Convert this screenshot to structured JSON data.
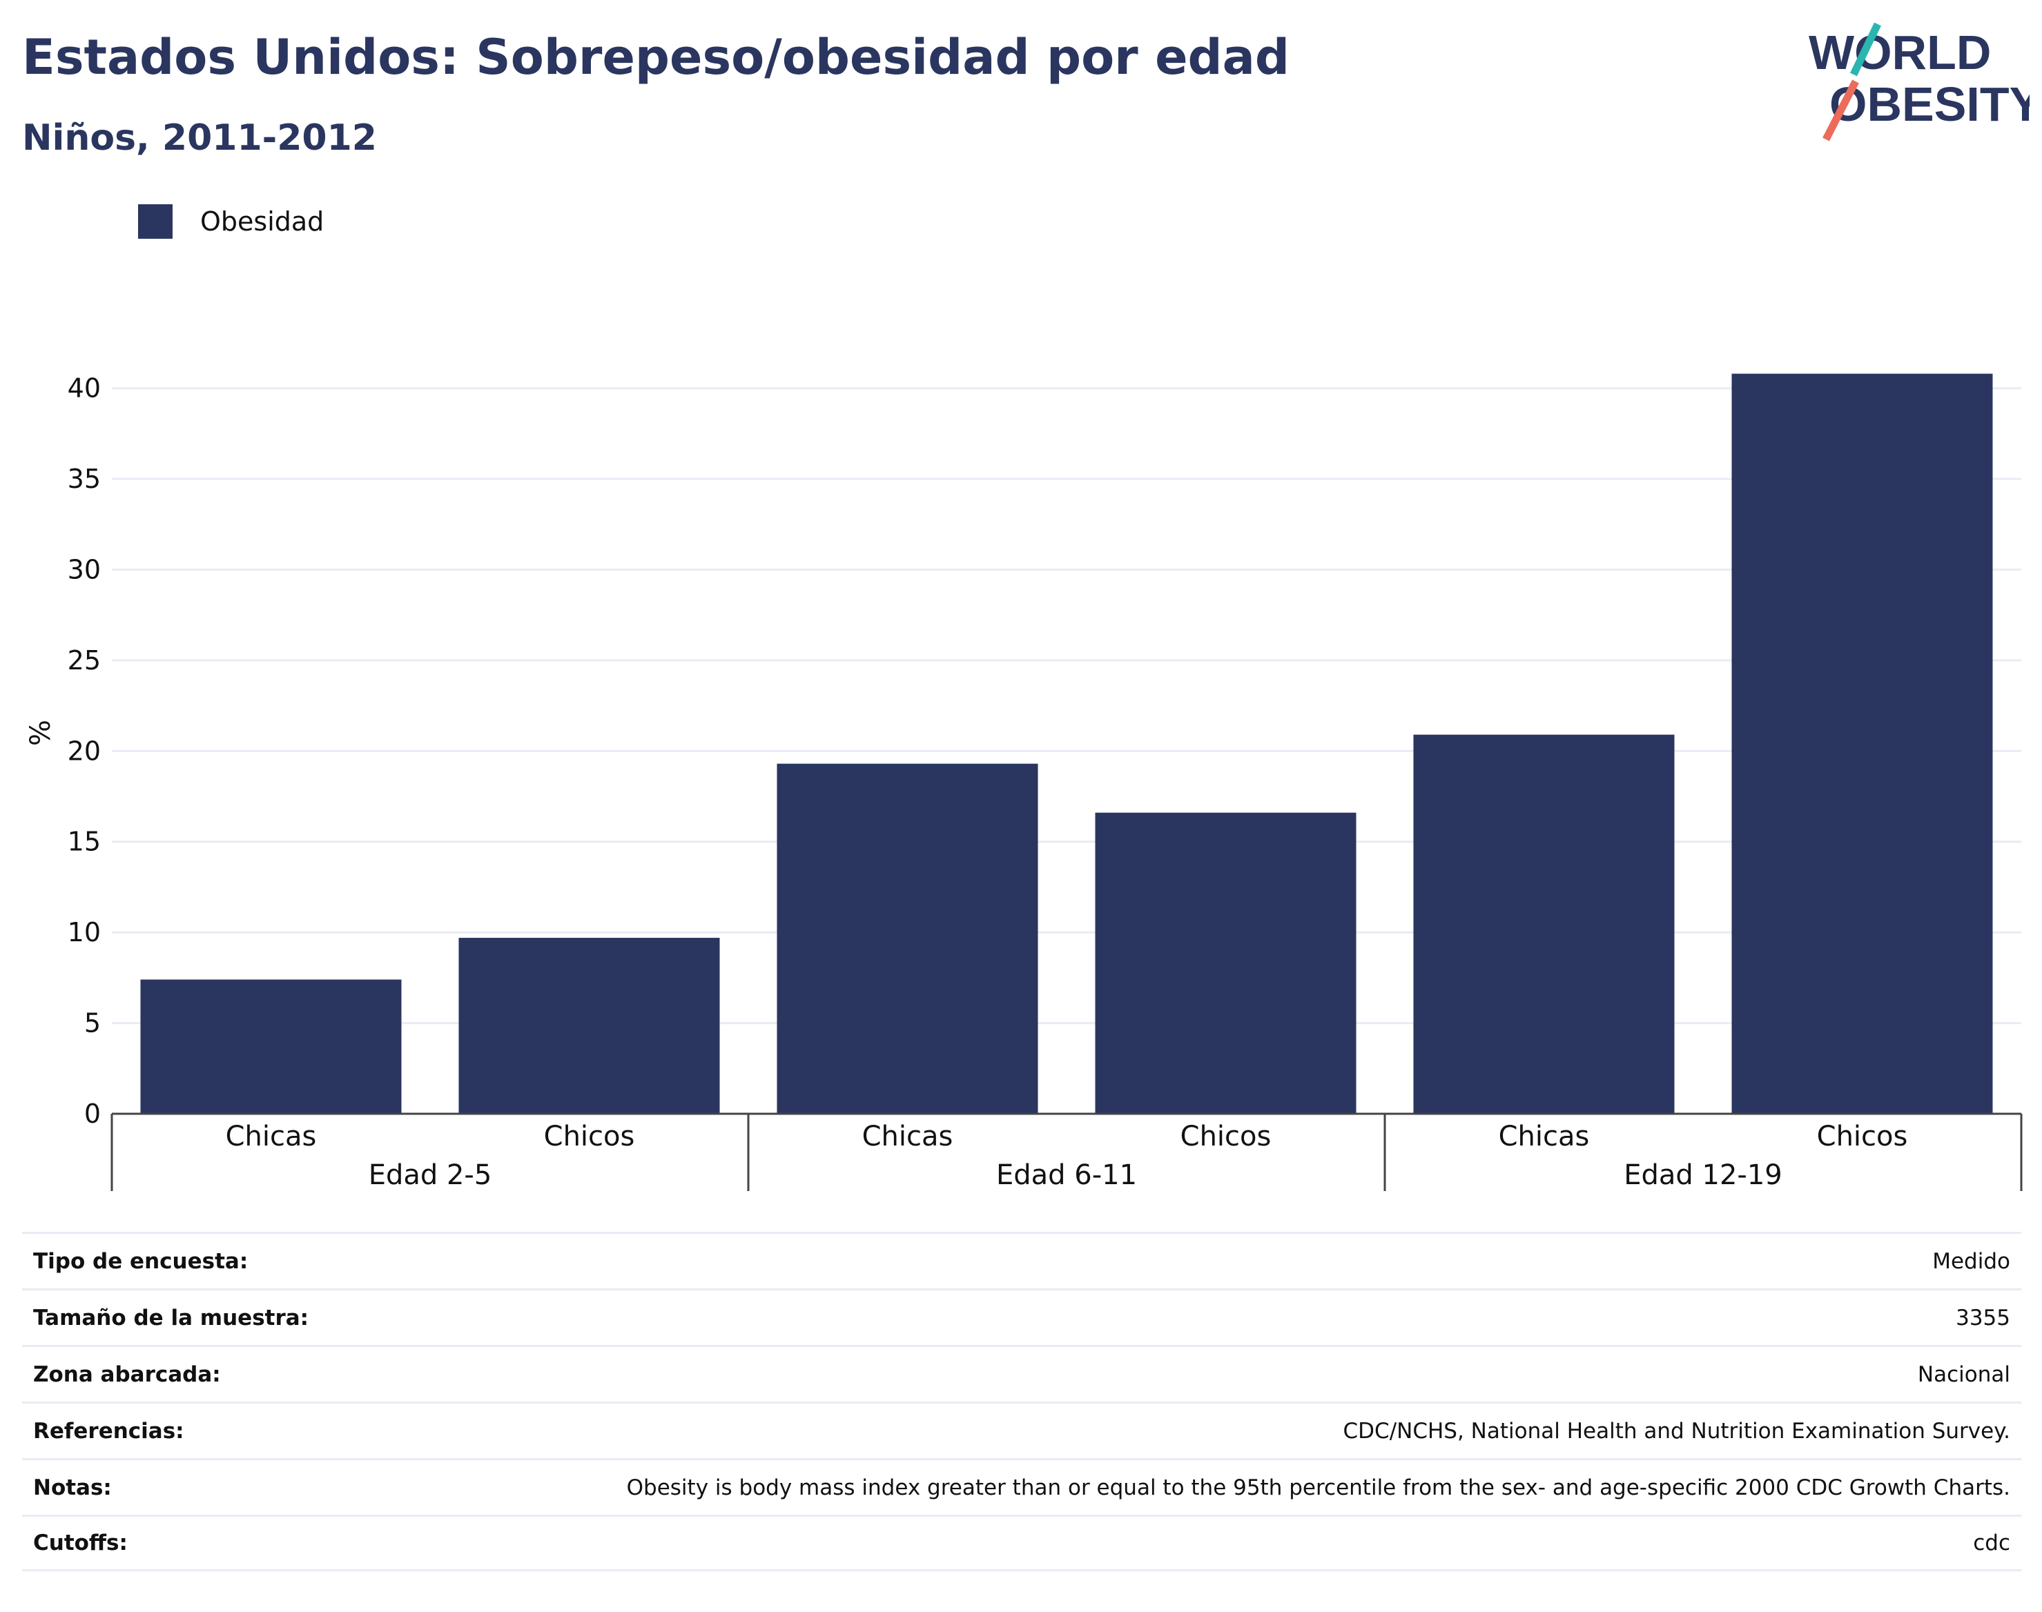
{
  "header": {
    "title": "Estados Unidos: Sobrepeso/obesidad por edad",
    "subtitle": "Niños, 2011-2012"
  },
  "logo": {
    "line1": "WORLD",
    "line2": "OBESITY"
  },
  "legend": {
    "label": "Obesidad"
  },
  "colors": {
    "bar": "#2a365f",
    "text": "#111111",
    "grid": "#e8ebf3",
    "logo_teal": "#2bb5b0",
    "logo_coral": "#ec6b5b"
  },
  "chart_data": {
    "type": "bar",
    "categories": [
      "Chicas",
      "Chicos",
      "Chicas",
      "Chicos",
      "Chicas",
      "Chicos"
    ],
    "groups": [
      {
        "label": "Edad 2-5",
        "members": [
          0,
          1
        ]
      },
      {
        "label": "Edad 6-11",
        "members": [
          2,
          3
        ]
      },
      {
        "label": "Edad 12-19",
        "members": [
          4,
          5
        ]
      }
    ],
    "series": [
      {
        "name": "Obesidad",
        "values": [
          7.4,
          9.7,
          19.3,
          16.6,
          20.9,
          40.8
        ]
      }
    ],
    "ylabel": "%",
    "ylim": [
      0,
      42
    ],
    "yticks": [
      0,
      5,
      10,
      15,
      20,
      25,
      30,
      35,
      40
    ],
    "grid": true,
    "legend_position": "top-left"
  },
  "info": [
    {
      "label": "Tipo de encuesta:",
      "value": "Medido"
    },
    {
      "label": "Tamaño de la muestra:",
      "value": "3355"
    },
    {
      "label": "Zona abarcada:",
      "value": "Nacional"
    },
    {
      "label": "Referencias:",
      "value": "CDC/NCHS, National Health and Nutrition Examination Survey."
    },
    {
      "label": "Notas:",
      "value": "Obesity is body mass index greater than or equal to the 95th percentile from the sex- and age-specific 2000 CDC Growth Charts."
    },
    {
      "label": "Cutoffs:",
      "value": "cdc"
    }
  ]
}
